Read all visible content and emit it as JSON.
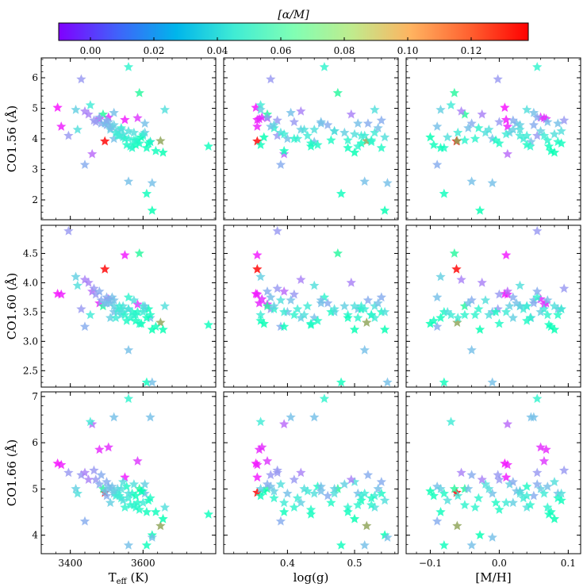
{
  "chart_data": {
    "type": "scatter",
    "marker": "star",
    "colormap": "rainbow",
    "colorbar": {
      "label": "[α/M]",
      "range": [
        -0.01,
        0.138
      ],
      "ticks": [
        "0.00",
        "0.02",
        "0.04",
        "0.06",
        "0.08",
        "0.10",
        "0.12"
      ],
      "tick_values": [
        0.0,
        0.02,
        0.04,
        0.06,
        0.08,
        0.1,
        0.12
      ],
      "placement": "top"
    },
    "columns": [
      {
        "xlabel": "T",
        "xlabel_sub": "eff",
        "xlabel_unit": " (K)",
        "xlim": [
          3320,
          3800
        ],
        "ticks": [
          "3400",
          "3600"
        ],
        "tick_values": [
          3400,
          3600
        ],
        "x_key": "teff"
      },
      {
        "xlabel": "log(g)",
        "xlim": [
          0.305,
          0.565
        ],
        "ticks": [
          "0.4",
          "0.5"
        ],
        "tick_values": [
          0.4,
          0.5
        ],
        "x_key": "logg"
      },
      {
        "xlabel": "[M/H]",
        "xlim": [
          -0.135,
          0.118
        ],
        "ticks": [
          "−0.1",
          "0.0",
          "0.1"
        ],
        "tick_values": [
          -0.1,
          0.0,
          0.1
        ],
        "x_key": "mh"
      }
    ],
    "rows": [
      {
        "ylabel": "CO1.56 (Å)",
        "ylim": [
          1.35,
          6.65
        ],
        "ticks": [
          "2",
          "3",
          "4",
          "5",
          "6"
        ],
        "tick_values": [
          2,
          3,
          4,
          5,
          6
        ],
        "y_key": "co156"
      },
      {
        "ylabel": "CO1.60 (Å)",
        "ylim": [
          2.22,
          4.98
        ],
        "ticks": [
          "2.5",
          "3.0",
          "3.5",
          "4.0",
          "4.5",
          "5.0"
        ],
        "tick_values": [
          2.5,
          3.0,
          3.5,
          4.0,
          4.5,
          5.0
        ],
        "y_key": "co160"
      },
      {
        "ylabel": "CO1.66 (Å)",
        "ylim": [
          3.6,
          7.1
        ],
        "ticks": [
          "4",
          "5",
          "6",
          "7"
        ],
        "tick_values": [
          4,
          5,
          6,
          7
        ],
        "y_key": "co166"
      }
    ],
    "points": [
      {
        "teff": 3495,
        "logg": 0.355,
        "mh": -0.062,
        "co156": 3.92,
        "co160": 4.23,
        "co166": 4.92,
        "alpha": 0.138
      },
      {
        "teff": 3648,
        "logg": 0.518,
        "mh": -0.061,
        "co156": 3.93,
        "co160": 3.32,
        "co166": 4.2,
        "alpha": 0.105
      },
      {
        "teff": 3365,
        "logg": 0.353,
        "mh": 0.008,
        "co156": 5.02,
        "co160": 3.81,
        "co166": 5.55,
        "alpha": -0.008
      },
      {
        "teff": 3375,
        "logg": 0.355,
        "mh": 0.012,
        "co156": 4.4,
        "co160": 3.8,
        "co166": 5.52,
        "alpha": -0.005
      },
      {
        "teff": 3550,
        "logg": 0.355,
        "mh": 0.01,
        "co156": 4.62,
        "co160": 4.47,
        "co166": 5.25,
        "alpha": -0.006
      },
      {
        "teff": 3480,
        "logg": 0.358,
        "mh": 0.068,
        "co156": 4.65,
        "co160": 3.65,
        "co166": 5.85,
        "alpha": -0.003
      },
      {
        "teff": 3505,
        "logg": 0.362,
        "mh": 0.06,
        "co156": 4.7,
        "co160": 3.72,
        "co166": 5.9,
        "alpha": -0.002
      },
      {
        "teff": 3585,
        "logg": 0.37,
        "mh": 0.065,
        "co156": 4.68,
        "co160": 3.63,
        "co166": 5.6,
        "alpha": 0.0
      },
      {
        "teff": 3430,
        "logg": 0.375,
        "mh": -0.002,
        "co156": 5.95,
        "co160": 3.55,
        "co166": 5.3,
        "alpha": 0.02
      },
      {
        "teff": 3395,
        "logg": 0.385,
        "mh": 0.055,
        "co156": 4.1,
        "co160": 4.88,
        "co166": 5.35,
        "alpha": 0.02
      },
      {
        "teff": 3460,
        "logg": 0.395,
        "mh": 0.012,
        "co156": 3.5,
        "co160": 3.85,
        "co166": 6.4,
        "alpha": 0.01
      },
      {
        "teff": 3520,
        "logg": 0.405,
        "mh": 0.05,
        "co156": 4.85,
        "co160": 3.7,
        "co166": 6.55,
        "alpha": 0.03
      },
      {
        "teff": 3620,
        "logg": 0.44,
        "mh": 0.046,
        "co156": 3.9,
        "co160": 3.4,
        "co166": 6.55,
        "alpha": 0.03
      },
      {
        "teff": 3560,
        "logg": 0.455,
        "mh": 0.055,
        "co156": 6.35,
        "co160": 3.75,
        "co166": 6.95,
        "alpha": 0.05
      },
      {
        "teff": 3590,
        "logg": 0.475,
        "mh": -0.065,
        "co156": 5.5,
        "co160": 4.5,
        "co166": 5.0,
        "alpha": 0.075
      },
      {
        "teff": 3610,
        "logg": 0.48,
        "mh": -0.08,
        "co156": 2.2,
        "co160": 2.3,
        "co166": 3.78,
        "alpha": 0.06
      },
      {
        "teff": 3625,
        "logg": 0.545,
        "mh": -0.028,
        "co156": 1.65,
        "co160": 3.2,
        "co166": 4.0,
        "alpha": 0.065
      },
      {
        "teff": 3560,
        "logg": 0.515,
        "mh": -0.04,
        "co156": 2.6,
        "co160": 2.85,
        "co166": 3.78,
        "alpha": 0.03
      },
      {
        "teff": 3625,
        "logg": 0.549,
        "mh": -0.01,
        "co156": 2.55,
        "co160": 2.3,
        "co166": 3.95,
        "alpha": 0.03
      },
      {
        "teff": 3440,
        "logg": 0.39,
        "mh": -0.09,
        "co156": 3.15,
        "co160": 3.25,
        "co166": 4.3,
        "alpha": 0.025
      },
      {
        "teff": 3780,
        "logg": 0.435,
        "mh": 0.072,
        "co156": 3.75,
        "co160": 3.28,
        "co166": 4.45,
        "alpha": 0.06
      },
      {
        "teff": 3660,
        "logg": 0.53,
        "mh": 0.04,
        "co156": 4.95,
        "co160": 3.6,
        "co166": 4.6,
        "alpha": 0.04
      },
      {
        "teff": 3605,
        "logg": 0.505,
        "mh": 0.085,
        "co156": 4.5,
        "co160": 3.55,
        "co166": 4.9,
        "alpha": 0.03
      },
      {
        "teff": 3455,
        "logg": 0.36,
        "mh": -0.07,
        "co156": 5.1,
        "co160": 3.45,
        "co166": 6.45,
        "alpha": 0.045
      },
      {
        "teff": 3490,
        "logg": 0.37,
        "mh": -0.05,
        "co156": 4.8,
        "co160": 3.6,
        "co166": 5.0,
        "alpha": 0.075
      },
      {
        "teff": 3540,
        "logg": 0.38,
        "mh": -0.03,
        "co156": 4.35,
        "co160": 3.55,
        "co166": 4.8,
        "alpha": 0.05
      },
      {
        "teff": 3575,
        "logg": 0.39,
        "mh": -0.02,
        "co156": 4.2,
        "co160": 3.7,
        "co166": 5.1,
        "alpha": 0.04
      },
      {
        "teff": 3520,
        "logg": 0.4,
        "mh": -0.01,
        "co156": 4.0,
        "co160": 3.5,
        "co166": 4.9,
        "alpha": 0.03
      },
      {
        "teff": 3470,
        "logg": 0.41,
        "mh": 0.0,
        "co156": 4.55,
        "co160": 3.8,
        "co166": 5.2,
        "alpha": 0.02
      },
      {
        "teff": 3510,
        "logg": 0.42,
        "mh": 0.02,
        "co156": 4.3,
        "co160": 3.4,
        "co166": 4.7,
        "alpha": 0.035
      },
      {
        "teff": 3600,
        "logg": 0.43,
        "mh": 0.03,
        "co156": 4.1,
        "co160": 3.6,
        "co166": 4.95,
        "alpha": 0.045
      },
      {
        "teff": 3555,
        "logg": 0.445,
        "mh": 0.04,
        "co156": 3.8,
        "co160": 3.35,
        "co166": 5.05,
        "alpha": 0.055
      },
      {
        "teff": 3500,
        "logg": 0.46,
        "mh": 0.05,
        "co156": 4.45,
        "co160": 3.65,
        "co166": 4.85,
        "alpha": 0.025
      },
      {
        "teff": 3530,
        "logg": 0.47,
        "mh": 0.06,
        "co156": 4.25,
        "co160": 3.5,
        "co166": 5.0,
        "alpha": 0.035
      },
      {
        "teff": 3580,
        "logg": 0.49,
        "mh": 0.07,
        "co156": 3.95,
        "co160": 3.45,
        "co166": 4.6,
        "alpha": 0.05
      },
      {
        "teff": 3545,
        "logg": 0.5,
        "mh": 0.08,
        "co156": 4.15,
        "co160": 3.6,
        "co166": 5.15,
        "alpha": 0.04
      },
      {
        "teff": 3615,
        "logg": 0.51,
        "mh": 0.09,
        "co156": 3.85,
        "co160": 3.55,
        "co166": 4.75,
        "alpha": 0.06
      },
      {
        "teff": 3485,
        "logg": 0.52,
        "mh": -0.04,
        "co156": 4.5,
        "co160": 3.7,
        "co166": 5.3,
        "alpha": 0.025
      },
      {
        "teff": 3525,
        "logg": 0.53,
        "mh": -0.06,
        "co156": 4.2,
        "co160": 3.4,
        "co166": 4.85,
        "alpha": 0.045
      },
      {
        "teff": 3570,
        "logg": 0.54,
        "mh": -0.08,
        "co156": 3.7,
        "co160": 3.5,
        "co166": 4.9,
        "alpha": 0.055
      },
      {
        "teff": 3595,
        "logg": 0.365,
        "mh": -0.1,
        "co156": 4.05,
        "co160": 3.3,
        "co166": 4.95,
        "alpha": 0.065
      },
      {
        "teff": 3515,
        "logg": 0.375,
        "mh": -0.09,
        "co156": 4.4,
        "co160": 3.75,
        "co166": 5.05,
        "alpha": 0.03
      },
      {
        "teff": 3465,
        "logg": 0.385,
        "mh": 0.094,
        "co156": 4.6,
        "co160": 3.9,
        "co166": 5.4,
        "alpha": 0.02
      },
      {
        "teff": 3635,
        "logg": 0.395,
        "mh": 0.075,
        "co156": 3.6,
        "co160": 3.25,
        "co166": 4.5,
        "alpha": 0.06
      },
      {
        "teff": 3560,
        "logg": 0.415,
        "mh": 0.035,
        "co156": 4.0,
        "co160": 3.55,
        "co166": 4.8,
        "alpha": 0.045
      },
      {
        "teff": 3540,
        "logg": 0.425,
        "mh": -0.015,
        "co156": 4.3,
        "co160": 3.45,
        "co166": 5.0,
        "alpha": 0.04
      },
      {
        "teff": 3495,
        "logg": 0.45,
        "mh": 0.025,
        "co156": 4.5,
        "co160": 3.65,
        "co166": 4.95,
        "alpha": 0.03
      },
      {
        "teff": 3585,
        "logg": 0.465,
        "mh": -0.005,
        "co156": 3.95,
        "co160": 3.5,
        "co166": 4.7,
        "alpha": 0.055
      },
      {
        "teff": 3605,
        "logg": 0.485,
        "mh": 0.015,
        "co156": 4.2,
        "co160": 3.6,
        "co166": 5.1,
        "alpha": 0.035
      },
      {
        "teff": 3450,
        "logg": 0.495,
        "mh": -0.025,
        "co156": 4.8,
        "co160": 4.0,
        "co166": 5.2,
        "alpha": 0.015
      },
      {
        "teff": 3565,
        "logg": 0.505,
        "mh": 0.045,
        "co156": 3.75,
        "co160": 3.4,
        "co166": 4.65,
        "alpha": 0.05
      },
      {
        "teff": 3530,
        "logg": 0.515,
        "mh": 0.065,
        "co156": 4.1,
        "co160": 3.55,
        "co166": 4.9,
        "alpha": 0.045
      },
      {
        "teff": 3620,
        "logg": 0.525,
        "mh": 0.085,
        "co156": 3.9,
        "co160": 3.45,
        "co166": 4.8,
        "alpha": 0.055
      },
      {
        "teff": 3510,
        "logg": 0.535,
        "mh": -0.045,
        "co156": 4.35,
        "co160": 3.65,
        "co166": 5.0,
        "alpha": 0.03
      },
      {
        "teff": 3545,
        "logg": 0.545,
        "mh": -0.075,
        "co156": 4.05,
        "co160": 3.5,
        "co166": 4.75,
        "alpha": 0.04
      },
      {
        "teff": 3580,
        "logg": 0.36,
        "mh": -0.095,
        "co156": 3.8,
        "co160": 3.35,
        "co166": 4.85,
        "alpha": 0.06
      },
      {
        "teff": 3480,
        "logg": 0.37,
        "mh": 0.055,
        "co156": 4.7,
        "co160": 3.85,
        "co166": 5.1,
        "alpha": 0.025
      },
      {
        "teff": 3520,
        "logg": 0.38,
        "mh": 0.03,
        "co156": 4.45,
        "co160": 3.6,
        "co166": 4.95,
        "alpha": 0.035
      },
      {
        "teff": 3600,
        "logg": 0.395,
        "mh": 0.01,
        "co156": 4.15,
        "co160": 3.5,
        "co166": 4.7,
        "alpha": 0.045
      },
      {
        "teff": 3550,
        "logg": 0.41,
        "mh": -0.035,
        "co156": 4.0,
        "co160": 3.45,
        "co166": 4.6,
        "alpha": 0.05
      },
      {
        "teff": 3440,
        "logg": 0.42,
        "mh": -0.055,
        "co156": 4.9,
        "co160": 4.05,
        "co166": 5.35,
        "alpha": 0.015
      },
      {
        "teff": 3590,
        "logg": 0.435,
        "mh": 0.0,
        "co156": 3.85,
        "co160": 3.3,
        "co166": 4.55,
        "alpha": 0.055
      },
      {
        "teff": 3505,
        "logg": 0.45,
        "mh": 0.07,
        "co156": 4.55,
        "co160": 3.7,
        "co166": 5.05,
        "alpha": 0.03
      },
      {
        "teff": 3560,
        "logg": 0.47,
        "mh": 0.09,
        "co156": 4.25,
        "co160": 3.55,
        "co166": 4.9,
        "alpha": 0.04
      },
      {
        "teff": 3610,
        "logg": 0.49,
        "mh": -0.085,
        "co156": 3.7,
        "co160": 3.4,
        "co166": 4.5,
        "alpha": 0.06
      },
      {
        "teff": 3535,
        "logg": 0.51,
        "mh": 0.04,
        "co156": 4.1,
        "co160": 3.6,
        "co166": 4.85,
        "alpha": 0.045
      },
      {
        "teff": 3575,
        "logg": 0.525,
        "mh": -0.05,
        "co156": 3.95,
        "co160": 3.45,
        "co166": 4.65,
        "alpha": 0.05
      },
      {
        "teff": 3500,
        "logg": 0.54,
        "mh": 0.02,
        "co156": 4.6,
        "co160": 3.75,
        "co166": 5.15,
        "alpha": 0.025
      },
      {
        "teff": 3655,
        "logg": 0.5,
        "mh": 0.08,
        "co156": 3.55,
        "co160": 3.2,
        "co166": 4.35,
        "alpha": 0.065
      },
      {
        "teff": 3415,
        "logg": 0.36,
        "mh": -0.085,
        "co156": 4.95,
        "co160": 4.1,
        "co166": 5.0,
        "alpha": 0.035
      },
      {
        "teff": 3420,
        "logg": 0.44,
        "mh": 0.03,
        "co156": 4.3,
        "co160": 3.95,
        "co166": 4.9,
        "alpha": 0.04
      }
    ]
  }
}
